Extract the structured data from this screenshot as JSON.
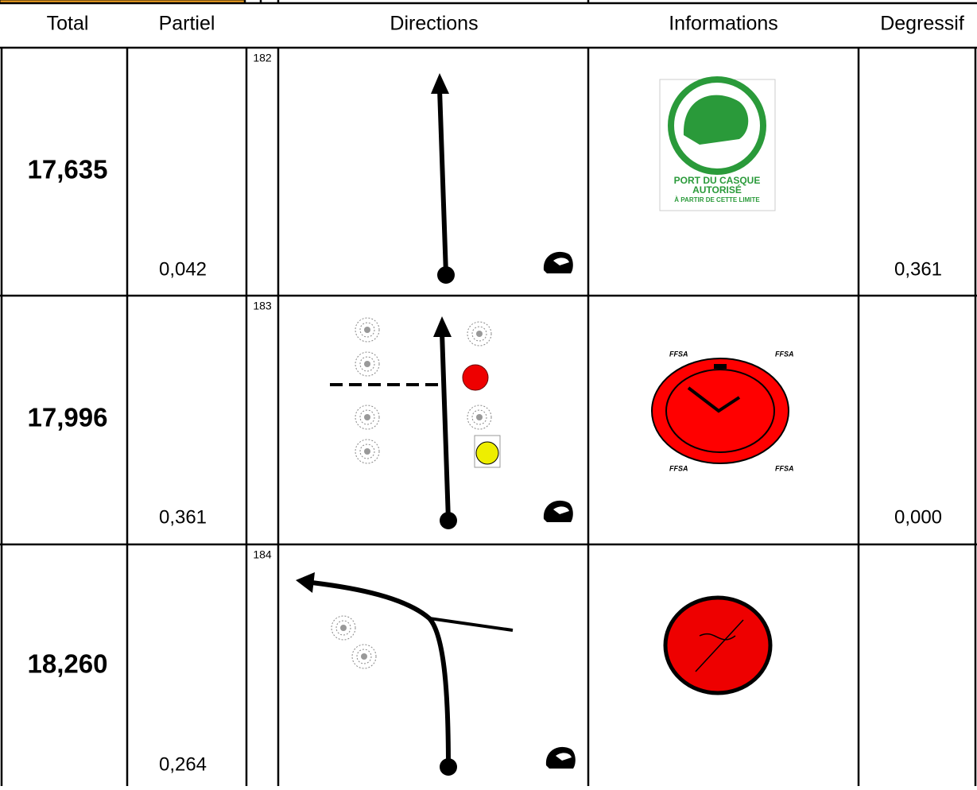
{
  "table": {
    "headers": [
      "Total",
      "Partiel",
      "Directions",
      "Informations",
      "Degressif"
    ],
    "rows": [
      {
        "total": "17,635",
        "partiel": "0,042",
        "number": "182",
        "degressif": "0,361"
      },
      {
        "total": "17,996",
        "partiel": "0,361",
        "number": "183",
        "degressif": "0,000"
      },
      {
        "total": "18,260",
        "partiel": "0,264",
        "number": "184"
      }
    ]
  },
  "signs": {
    "helmet_sign": [
      "PORT DU CASQUE",
      "AUTORISÉ",
      "À PARTIR DE CETTE LIMITE"
    ],
    "clock_sign": "FFSA"
  }
}
